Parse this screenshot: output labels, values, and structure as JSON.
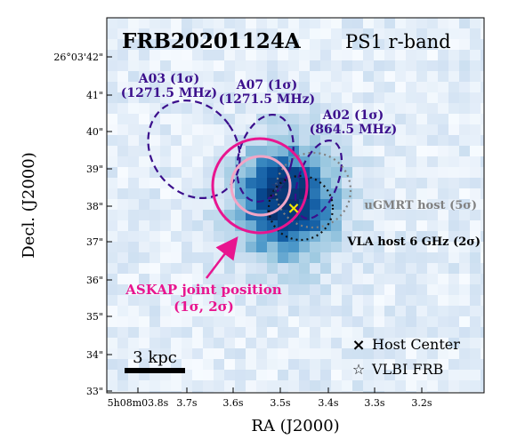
{
  "chart_data": {
    "type": "image",
    "title": "FRB20201124A",
    "subtitle": "PS1 r-band",
    "xlabel": "RA (J2000)",
    "ylabel": "Decl. (J2000)",
    "x_ticks": [
      "5h08m03.8s",
      "3.7s",
      "3.6s",
      "3.5s",
      "3.4s",
      "3.3s",
      "3.2s"
    ],
    "y_ticks": [
      "26°03'42\"",
      "41\"",
      "40\"",
      "39\"",
      "38\"",
      "37\"",
      "36\"",
      "35\"",
      "34\"",
      "33\""
    ],
    "xlim_sec": [
      3.84,
      3.12
    ],
    "ylim_arcsec": [
      33,
      42.5
    ],
    "colormap": "Blues",
    "regions": [
      {
        "id": "A03",
        "label_line1": "A03 (1σ)",
        "label_line2": "(1271.5 MHz)",
        "style": "dashed",
        "color": "#3b0f8c"
      },
      {
        "id": "A07",
        "label_line1": "A07 (1σ)",
        "label_line2": "(1271.5 MHz)",
        "style": "dashed",
        "color": "#3b0f8c"
      },
      {
        "id": "A02",
        "label_line1": "A02 (1σ)",
        "label_line2": "(864.5 MHz)",
        "style": "dashed",
        "color": "#3b0f8c"
      },
      {
        "id": "ASKAP",
        "label_line1": "ASKAP joint position",
        "label_line2": "(1σ, 2σ)",
        "style": "solid",
        "color": "#e8158f"
      },
      {
        "id": "uGMRT",
        "label": "uGMRT host (5σ)",
        "style": "dotted",
        "color": "#808080"
      },
      {
        "id": "VLA",
        "label": "VLA host 6 GHz (2σ)",
        "style": "dotted",
        "color": "#000000"
      }
    ],
    "legend": [
      {
        "marker": "×",
        "label": "Host Center"
      },
      {
        "marker": "☆",
        "label": "VLBI FRB"
      }
    ],
    "scale_bar": "3 kpc",
    "colors": {
      "asakp_outer": "#e8158f",
      "askap_inner": "#f2a5c5",
      "host_center": "#f2e600",
      "radio": "#3b0f8c"
    }
  }
}
